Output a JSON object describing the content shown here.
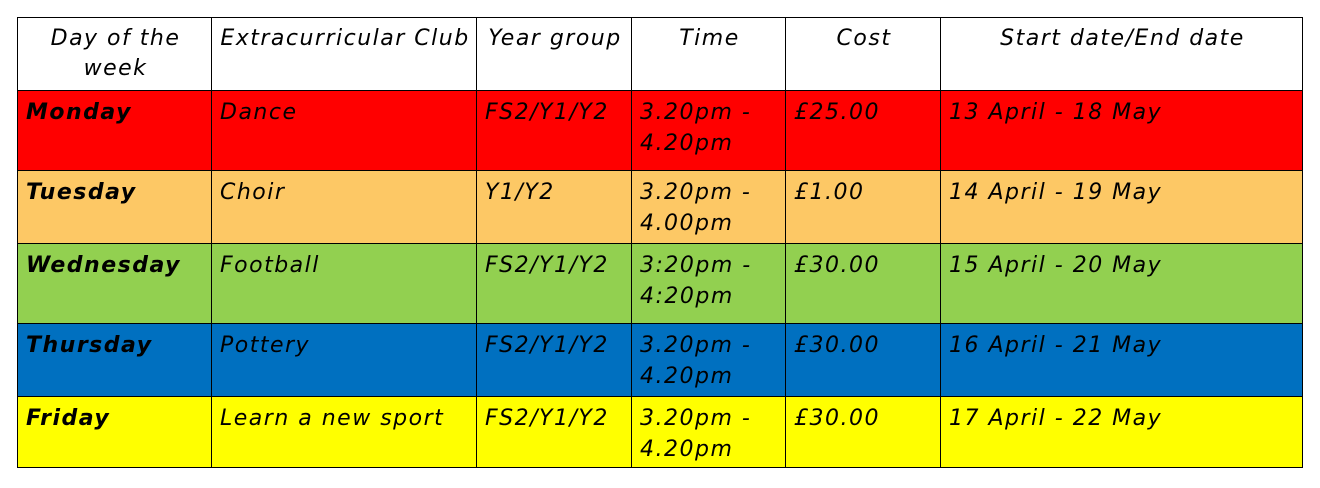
{
  "headers": [
    "Day of the week",
    "Extracurricular Club",
    "Year group",
    "Time",
    "Cost",
    "Start date/End date"
  ],
  "rows": [
    {
      "day": "Monday",
      "club": "Dance",
      "year": "FS2/Y1/Y2",
      "time": "3.20pm - 4.20pm",
      "cost": "£25.00",
      "dates": "13 April - 18 May",
      "color": "#ff0000"
    },
    {
      "day": "Tuesday",
      "club": "Choir",
      "year": "Y1/Y2",
      "time": "3.20pm - 4.00pm",
      "cost": "£1.00",
      "dates": "14 April - 19 May",
      "color": "#fdc865"
    },
    {
      "day": "Wednesday",
      "club": "Football",
      "year": "FS2/Y1/Y2",
      "time": "3:20pm - 4:20pm",
      "cost": "£30.00",
      "dates": "15 April - 20 May",
      "color": "#92d050"
    },
    {
      "day": "Thursday",
      "club": "Pottery",
      "year": "FS2/Y1/Y2",
      "time": "3.20pm - 4.20pm",
      "cost": "£30.00",
      "dates": "16 April - 21 May",
      "color": "#0070c0"
    },
    {
      "day": "Friday",
      "club": "Learn a new sport",
      "year": "FS2/Y1/Y2",
      "time": "3.20pm - 4.20pm",
      "cost": "£30.00",
      "dates": "17 April - 22 May",
      "color": "#ffff00"
    }
  ]
}
